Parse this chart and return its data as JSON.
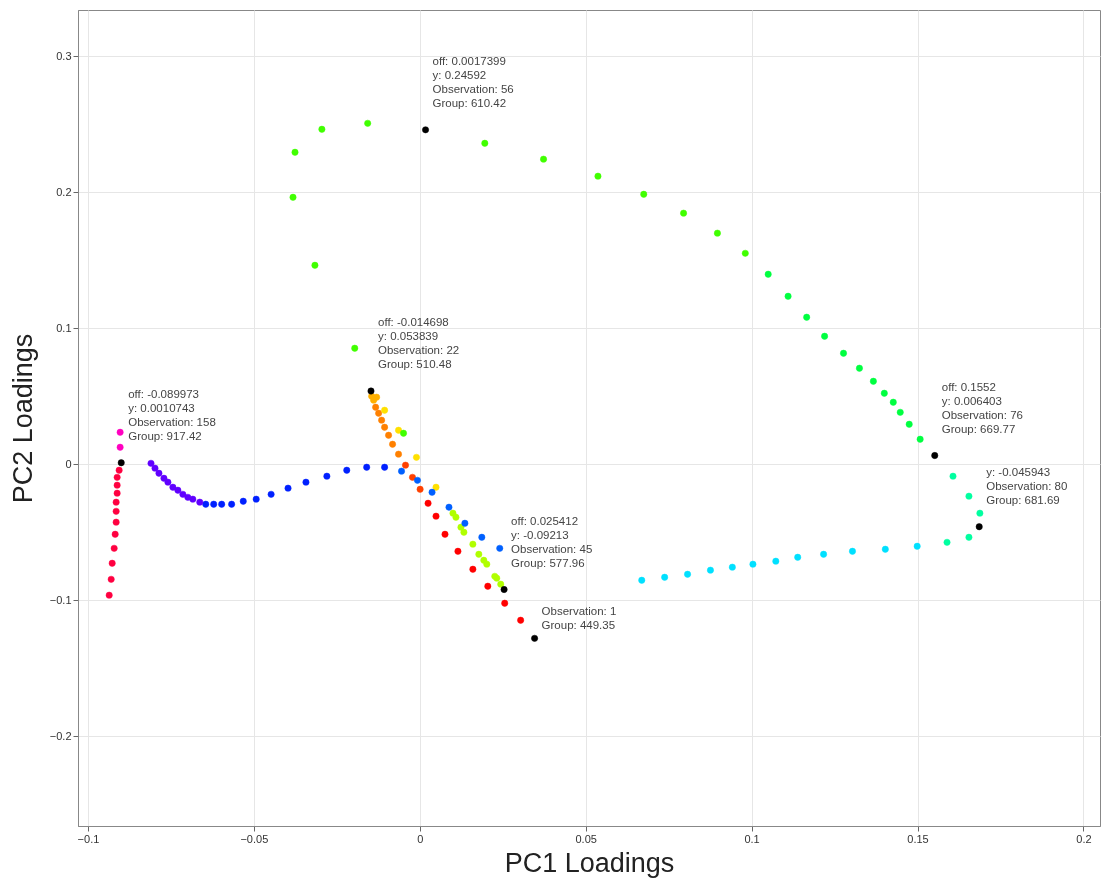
{
  "chart_data": {
    "type": "scatter",
    "xlabel": "PC1 Loadings",
    "ylabel": "PC2 Loadings",
    "xlim": [
      -0.103,
      0.205
    ],
    "ylim": [
      -0.266,
      0.334
    ],
    "xticks": [
      -0.1,
      -0.05,
      0,
      0.05,
      0.1,
      0.15,
      0.2
    ],
    "yticks": [
      -0.2,
      -0.1,
      0,
      0.1,
      0.2,
      0.3
    ],
    "grid": true,
    "marker": "circle",
    "series": [
      {
        "color": "#ff0000",
        "x": [
          0.0304,
          0.0256,
          0.0205,
          0.016,
          0.0115,
          0.0076,
          0.0049,
          0.0025
        ],
        "values": [
          -0.1147,
          -0.1022,
          -0.0897,
          -0.0772,
          -0.064,
          -0.0515,
          -0.0382,
          -0.0287
        ]
      },
      {
        "color": "#ff4000",
        "x": [
          0.0001,
          -0.0022,
          -0.0043
        ],
        "values": [
          -0.0184,
          -0.0096,
          -0.0007
        ]
      },
      {
        "color": "#ff8000",
        "x": [
          -0.0064,
          -0.0082,
          -0.0094,
          -0.0106,
          -0.0115,
          -0.0124,
          -0.0133
        ],
        "values": [
          0.0074,
          0.0147,
          0.0213,
          0.0272,
          0.0324,
          0.0375,
          0.0419
        ]
      },
      {
        "color": "#ffb000",
        "x": [
          -0.0139,
          -0.0145,
          -0.013
        ],
        "values": [
          0.0471,
          0.05,
          0.0493
        ]
      },
      {
        "color": "#ffe000",
        "x": [
          -0.0106,
          -0.0064,
          -0.001,
          0.0049
        ],
        "values": [
          0.0397,
          0.025,
          0.0051,
          -0.0169
        ]
      },
      {
        "color": "#b0ff00",
        "x": [
          0.01,
          0.0109,
          0.0124,
          0.0133,
          0.016,
          0.0178,
          0.0193,
          0.0202,
          0.0226,
          0.0232,
          0.0244
        ],
        "values": [
          -0.036,
          -0.039,
          -0.0463,
          -0.05,
          -0.0588,
          -0.0662,
          -0.0706,
          -0.0735,
          -0.0824,
          -0.0838,
          -0.0882
        ]
      },
      {
        "color": "#40ff00",
        "x": [
          -0.0049,
          -0.0196,
          -0.0316,
          -0.0382,
          -0.0376,
          -0.0295,
          -0.0157,
          0.0196,
          0.0373,
          0.0537,
          0.0675,
          0.0795,
          0.0897,
          0.0981
        ],
        "values": [
          0.0228,
          0.0853,
          0.1463,
          0.1963,
          0.2294,
          0.2463,
          0.2507,
          0.236,
          0.2243,
          0.2118,
          0.1985,
          0.1846,
          0.1699,
          0.1551
        ]
      },
      {
        "color": "#00ff40",
        "x": [
          0.105,
          0.111,
          0.1166,
          0.122,
          0.1277,
          0.1325,
          0.1367,
          0.14,
          0.1427,
          0.1448,
          0.1475,
          0.1508
        ],
        "values": [
          0.1397,
          0.1235,
          0.1081,
          0.0941,
          0.0816,
          0.0706,
          0.061,
          0.0522,
          0.0456,
          0.0382,
          0.0294,
          0.0184
        ]
      },
      {
        "color": "#00ffa0",
        "x": [
          0.1607,
          0.1655,
          0.1688,
          0.1655,
          0.1589
        ],
        "values": [
          -0.0088,
          -0.0235,
          -0.036,
          -0.0537,
          -0.0574
        ]
      },
      {
        "color": "#00e0ff",
        "x": [
          0.1499,
          0.1403,
          0.1304,
          0.1217,
          0.1139,
          0.1073,
          0.1004,
          0.0942,
          0.0876,
          0.0807,
          0.0738,
          0.0669
        ],
        "values": [
          -0.0603,
          -0.0625,
          -0.064,
          -0.0662,
          -0.0684,
          -0.0713,
          -0.0735,
          -0.0757,
          -0.0779,
          -0.0809,
          -0.0831,
          -0.0853
        ]
      },
      {
        "color": "#0060ff",
        "x": [
          0.0241,
          0.0187,
          0.0136,
          0.0088,
          0.0037,
          -0.0007,
          -0.0055
        ],
        "values": [
          -0.0618,
          -0.0537,
          -0.0434,
          -0.0316,
          -0.0206,
          -0.0118,
          -0.0051
        ]
      },
      {
        "color": "#0020ff",
        "x": [
          -0.0106,
          -0.016,
          -0.022,
          -0.028,
          -0.0343,
          -0.0397,
          -0.0448,
          -0.0493,
          -0.0532,
          -0.0567,
          -0.0597,
          -0.0621,
          -0.0645
        ],
        "values": [
          -0.0022,
          -0.0022,
          -0.0044,
          -0.0088,
          -0.0132,
          -0.0176,
          -0.0221,
          -0.0257,
          -0.0272,
          -0.0294,
          -0.0294,
          -0.0294,
          -0.0294
        ]
      },
      {
        "color": "#6000ff",
        "x": [
          -0.0663,
          -0.0684,
          -0.0699,
          -0.0714,
          -0.0729,
          -0.0744,
          -0.0759,
          -0.0771,
          -0.0786,
          -0.0798,
          -0.081
        ],
        "values": [
          -0.0279,
          -0.0257,
          -0.0243,
          -0.0221,
          -0.0191,
          -0.0169,
          -0.0132,
          -0.0103,
          -0.0066,
          -0.0029,
          0.0007
        ]
      },
      {
        "color": "#ff00c0",
        "x": [
          -0.0903,
          -0.0903
        ],
        "values": [
          0.0235,
          0.0125
        ]
      },
      {
        "color": "#ff0040",
        "x": [
          -0.0906,
          -0.0912,
          -0.0912,
          -0.0912,
          -0.0915,
          -0.0915,
          -0.0915,
          -0.0918,
          -0.0921,
          -0.0927,
          -0.093,
          -0.0936
        ],
        "values": [
          -0.0044,
          -0.0096,
          -0.0154,
          -0.0213,
          -0.0279,
          -0.0346,
          -0.0426,
          -0.0515,
          -0.0618,
          -0.0728,
          -0.0846,
          -0.0963
        ]
      },
      {
        "color": "#000000",
        "x": [
          0.0346,
          -0.014698,
          0.025412,
          0.0017399,
          0.1552,
          0.1686,
          -0.089973
        ],
        "values": [
          -0.128,
          0.053839,
          -0.09213,
          0.24592,
          0.006403,
          -0.045943,
          0.0010743
        ]
      }
    ],
    "annotations": [
      {
        "text": "off: 0.0017399\ny: 0.24592\n\nObservation: 56\nGroup: 610.42",
        "x": 0.0017399,
        "y": 0.24592
      },
      {
        "text": "off: -0.014698\ny: 0.053839\n\nObservation: 22\nGroup: 510.48",
        "x": -0.014698,
        "y": 0.053839
      },
      {
        "text": "off: -0.089973\ny: 0.0010743\n\nObservation: 158\nGroup: 917.42",
        "x": -0.089973,
        "y": 0.0010743
      },
      {
        "text": "off: 0.1552\ny: 0.006403\n\nObservation: 76\nGroup: 669.77",
        "x": 0.1552,
        "y": 0.006403
      },
      {
        "text": "y: -0.045943\n\nObservation: 80\nGroup: 681.69",
        "x": 0.1686,
        "y": -0.045943
      },
      {
        "text": "off: 0.025412\ny: -0.09213\n\nObservation: 45\nGroup: 577.96",
        "x": 0.025412,
        "y": -0.09213
      },
      {
        "text": "Observation: 1\nGroup: 449.35",
        "x": 0.0346,
        "y": -0.128
      }
    ]
  }
}
